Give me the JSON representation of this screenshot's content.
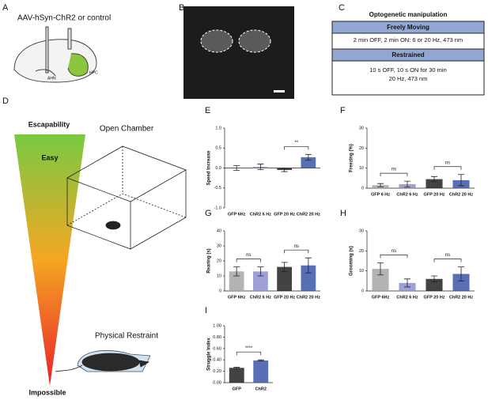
{
  "panels": {
    "a": {
      "letter": "A",
      "label": "AAV-hSyn-ChR2 or control",
      "region1": "AHN",
      "region2": "HPC"
    },
    "b": {
      "letter": "B"
    },
    "c": {
      "letter": "C",
      "title": "Optogenetic manipulation",
      "section1": "Freely Moving",
      "text1": "2 min OFF, 2 min ON: 6 or 20 Hz, 473 nm",
      "section2": "Restrained",
      "text2a": "10 s OFF, 10 s ON for 30 min",
      "text2b": "20 Hz, 473 nm"
    },
    "d": {
      "letter": "D",
      "axis": "Escapability",
      "top": "Easy",
      "bottom": "Impossible",
      "condition1": "Open Chamber",
      "condition2": "Physical Restraint"
    }
  },
  "chart_data": [
    {
      "type": "bar",
      "letter": "E",
      "ylabel": "Speed Increase",
      "categories": [
        "GFP 6Hz",
        "ChR2 6 Hz",
        "GFP 20 Hz",
        "ChR2 20 Hz"
      ],
      "values": [
        0.0,
        0.03,
        -0.05,
        0.27
      ],
      "errors": [
        0.06,
        0.07,
        0.04,
        0.07
      ],
      "colors": [
        "#a6a6a6",
        "#8e8fd0",
        "#222222",
        "#3b55a8"
      ],
      "ylim": [
        -1.0,
        1.0
      ],
      "yticks": [
        {
          "value": -1.0,
          "label": "-1.0"
        },
        {
          "value": -0.5,
          "label": "-0.5"
        },
        {
          "value": 0.0,
          "label": "0.0"
        },
        {
          "value": 0.5,
          "label": "0.5"
        },
        {
          "value": 1.0,
          "label": "1.0"
        }
      ],
      "annotations": [
        "**"
      ]
    },
    {
      "type": "bar",
      "letter": "F",
      "ylabel": "Freezing (%)",
      "categories": [
        "GFP 6 Hz",
        "ChR2 6 Hz",
        "GFP 20 Hz",
        "ChR2 20 Hz"
      ],
      "values": [
        1.5,
        2,
        4.5,
        4
      ],
      "errors": [
        0.8,
        1.5,
        1.3,
        2.8
      ],
      "colors": [
        "#a6a6a6",
        "#8e8fd0",
        "#222222",
        "#3b55a8"
      ],
      "ylim": [
        0,
        30
      ],
      "yticks": [
        0,
        10,
        20,
        30
      ],
      "annotations": [
        "ns",
        "ns"
      ]
    },
    {
      "type": "bar",
      "letter": "G",
      "ylabel": "Rearing (s)",
      "categories": [
        "GFP 6Hz",
        "ChR2 6 Hz",
        "GFP 20 Hz",
        "ChR2 20 Hz"
      ],
      "values": [
        13,
        13,
        16,
        17
      ],
      "errors": [
        3,
        3,
        3,
        5
      ],
      "colors": [
        "#a6a6a6",
        "#8e8fd0",
        "#222222",
        "#3b55a8"
      ],
      "ylim": [
        0,
        40
      ],
      "yticks": [
        0,
        10,
        20,
        30,
        40
      ],
      "annotations": [
        "ns",
        "ns"
      ]
    },
    {
      "type": "bar",
      "letter": "H",
      "ylabel": "Grooming (s)",
      "categories": [
        "GFP 6Hz",
        "ChR2 6 Hz",
        "GFP 20 Hz",
        "ChR2 20 Hz"
      ],
      "values": [
        11,
        4,
        6,
        8.5
      ],
      "errors": [
        3,
        2,
        1.5,
        3.5
      ],
      "colors": [
        "#a6a6a6",
        "#8e8fd0",
        "#222222",
        "#3b55a8"
      ],
      "ylim": [
        0,
        30
      ],
      "yticks": [
        0,
        10,
        20,
        30
      ],
      "annotations": [
        "ns",
        "ns"
      ]
    },
    {
      "type": "bar",
      "letter": "I",
      "ylabel": "Struggle Index",
      "categories": [
        "GFP",
        "ChR2"
      ],
      "values": [
        0.26,
        0.39
      ],
      "errors": [
        0.01,
        0.01
      ],
      "colors": [
        "#222222",
        "#3b55a8"
      ],
      "ylim": [
        0,
        1.0
      ],
      "yticks": [
        {
          "value": 0,
          "label": "0.00"
        },
        {
          "value": 0.2,
          "label": "0.20"
        },
        {
          "value": 0.4,
          "label": "0.40"
        },
        {
          "value": 0.6,
          "label": "0.60"
        },
        {
          "value": 0.8,
          "label": "0.80"
        },
        {
          "value": 1.0,
          "label": "1.00"
        }
      ],
      "annotations": [
        "****"
      ]
    }
  ]
}
